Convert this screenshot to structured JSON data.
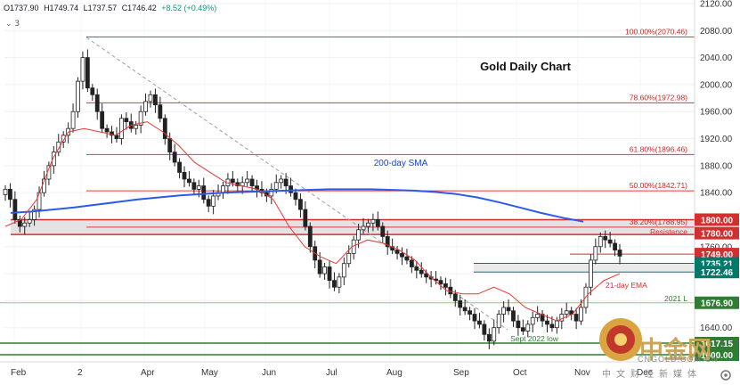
{
  "header": {
    "open": "O1737.90",
    "high": "H1749.74",
    "low": "L1737.57",
    "close": "C1746.42",
    "change": "+8.52 (+0.49%)",
    "indicator_count": "3"
  },
  "chart_data": {
    "type": "candlestick",
    "title": "Gold Daily Chart",
    "y_ticks": [
      2120,
      2080,
      2040,
      2000,
      1960,
      1920,
      1880,
      1840,
      1800,
      1760,
      1720,
      1680,
      1640,
      1600
    ],
    "ylim": [
      1592,
      2124
    ],
    "x_ticks": [
      "Feb",
      "2",
      "Apr",
      "May",
      "Jun",
      "Jul",
      "Aug",
      "Sep",
      "Oct",
      "Nov",
      "Dec"
    ],
    "fib_levels": [
      {
        "label": "100.00%(2070.46)",
        "value": 2070.46
      },
      {
        "label": "78.60%(1972.98)",
        "value": 1972.98
      },
      {
        "label": "61.80%(1896.46)",
        "value": 1896.46
      },
      {
        "label": "50.00%(1842.71)",
        "value": 1842.71
      },
      {
        "label": "38.20%(1788.95)",
        "value": 1788.95
      }
    ],
    "resistance_zone": [
      1778,
      1800
    ],
    "support_zone": [
      1722.46,
      1735.21
    ],
    "price_labels": [
      {
        "text": "1800.00",
        "value": 1800,
        "color": "#d32f2f"
      },
      {
        "text": "1780.00",
        "value": 1780,
        "color": "#d32f2f"
      },
      {
        "text": "1749.00",
        "value": 1749,
        "color": "#d32f2f"
      },
      {
        "text": "1735.21",
        "value": 1735.21,
        "color": "#00796b"
      },
      {
        "text": "1722.46",
        "value": 1722.46,
        "color": "#00796b"
      },
      {
        "text": "1676.90",
        "value": 1676.9,
        "color": "#2e7d32"
      },
      {
        "text": "1617.15",
        "value": 1617.15,
        "color": "#2e7d32"
      },
      {
        "text": "1600.00",
        "value": 1600,
        "color": "#2e7d32"
      }
    ],
    "annotations": [
      {
        "text": "200-day SMA",
        "color": "#1a3fcf"
      },
      {
        "text": "Resistance",
        "color": "#d32f2f"
      },
      {
        "text": "21-day EMA",
        "color": "#d32f2f"
      },
      {
        "text": "2021 L",
        "color": "#2e7d32"
      },
      {
        "text": "Sept 2022 low",
        "color": "#2e7d32"
      }
    ],
    "sma200": [
      1810,
      1812,
      1815,
      1818,
      1822,
      1826,
      1830,
      1833,
      1836,
      1838,
      1840,
      1841,
      1842,
      1843,
      1844,
      1845,
      1845,
      1845,
      1844,
      1843,
      1841,
      1838,
      1833,
      1826,
      1818,
      1810,
      1803,
      1797
    ],
    "ema21": [
      1790,
      1800,
      1830,
      1890,
      1930,
      1935,
      1930,
      1925,
      1940,
      1945,
      1930,
      1910,
      1885,
      1870,
      1855,
      1850,
      1845,
      1830,
      1790,
      1760,
      1745,
      1735,
      1760,
      1770,
      1765,
      1755,
      1740,
      1715,
      1695,
      1690,
      1690,
      1700,
      1690,
      1670,
      1660,
      1650,
      1660,
      1690,
      1710,
      1720
    ],
    "closes": [
      1845,
      1830,
      1800,
      1790,
      1795,
      1800,
      1815,
      1840,
      1860,
      1880,
      1900,
      1915,
      1925,
      1935,
      1960,
      2005,
      2040,
      1995,
      1985,
      1960,
      1935,
      1930,
      1925,
      1920,
      1950,
      1945,
      1935,
      1940,
      1960,
      1975,
      1985,
      1970,
      1950,
      1920,
      1900,
      1885,
      1870,
      1860,
      1855,
      1845,
      1850,
      1830,
      1820,
      1835,
      1840,
      1850,
      1860,
      1855,
      1850,
      1855,
      1860,
      1850,
      1845,
      1840,
      1835,
      1845,
      1855,
      1860,
      1850,
      1840,
      1830,
      1815,
      1790,
      1760,
      1740,
      1720,
      1730,
      1710,
      1700,
      1715,
      1735,
      1750,
      1770,
      1785,
      1790,
      1795,
      1800,
      1790,
      1775,
      1760,
      1755,
      1750,
      1745,
      1740,
      1730,
      1725,
      1720,
      1715,
      1712,
      1710,
      1705,
      1700,
      1690,
      1680,
      1670,
      1665,
      1660,
      1650,
      1645,
      1630,
      1620,
      1640,
      1660,
      1670,
      1665,
      1650,
      1640,
      1635,
      1645,
      1655,
      1660,
      1650,
      1645,
      1640,
      1650,
      1660,
      1665,
      1660,
      1650,
      1670,
      1700,
      1740,
      1760,
      1775,
      1770,
      1765,
      1755,
      1746
    ]
  },
  "watermark": {
    "brand": "中金网",
    "site": "CNGOLD.COM.CN",
    "tagline": "中文财经新媒体"
  }
}
